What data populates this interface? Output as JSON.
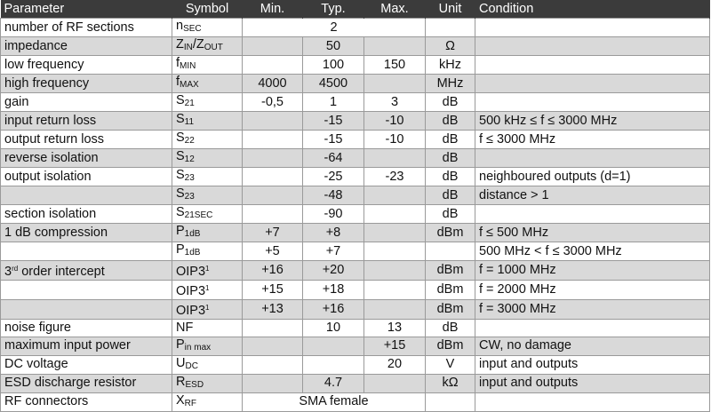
{
  "header": [
    "Parameter",
    "Symbol",
    "Min.",
    "Typ.",
    "Max.",
    "Unit",
    "Condition"
  ],
  "colors": {
    "header_bg": "#3b3b3b",
    "stripe": "#d9d9d9"
  },
  "rows": [
    {
      "param": [
        [
          "number of RF sections",
          ""
        ]
      ],
      "symbol": [
        [
          "n",
          ""
        ],
        [
          "SEC",
          "sub"
        ]
      ],
      "merged": "2",
      "unit": "",
      "cond": ""
    },
    {
      "param": [
        [
          "impedance",
          ""
        ]
      ],
      "symbol": [
        [
          "Z",
          ""
        ],
        [
          "IN",
          "sub"
        ],
        [
          "/Z",
          ""
        ],
        [
          "OUT",
          "sub"
        ]
      ],
      "min": "",
      "typ": "50",
      "max": "",
      "unit": "Ω",
      "cond": ""
    },
    {
      "param": [
        [
          "low frequency",
          ""
        ]
      ],
      "symbol": [
        [
          "f",
          ""
        ],
        [
          "MIN",
          "sub"
        ]
      ],
      "min": "",
      "typ": "100",
      "max": "150",
      "unit": "kHz",
      "cond": ""
    },
    {
      "param": [
        [
          "high frequency",
          ""
        ]
      ],
      "symbol": [
        [
          "f",
          ""
        ],
        [
          "MAX",
          "sub"
        ]
      ],
      "min": "4000",
      "typ": "4500",
      "max": "",
      "unit": "MHz",
      "cond": ""
    },
    {
      "param": [
        [
          "gain",
          ""
        ]
      ],
      "symbol": [
        [
          "S",
          ""
        ],
        [
          "21",
          "sub"
        ]
      ],
      "min": "-0,5",
      "typ": "1",
      "max": "3",
      "unit": "dB",
      "cond": ""
    },
    {
      "param": [
        [
          "input return loss",
          ""
        ]
      ],
      "symbol": [
        [
          "S",
          ""
        ],
        [
          "11",
          "sub"
        ]
      ],
      "min": "",
      "typ": "-15",
      "max": "-10",
      "unit": "dB",
      "cond": "500 kHz ≤ f ≤ 3000 MHz"
    },
    {
      "param": [
        [
          "output return loss",
          ""
        ]
      ],
      "symbol": [
        [
          "S",
          ""
        ],
        [
          "22",
          "sub"
        ]
      ],
      "min": "",
      "typ": "-15",
      "max": "-10",
      "unit": "dB",
      "cond": "f ≤ 3000 MHz"
    },
    {
      "param": [
        [
          "reverse isolation",
          ""
        ]
      ],
      "symbol": [
        [
          "S",
          ""
        ],
        [
          "12",
          "sub"
        ]
      ],
      "min": "",
      "typ": "-64",
      "max": "",
      "unit": "dB",
      "cond": ""
    },
    {
      "param": [
        [
          "output isolation",
          ""
        ]
      ],
      "symbol": [
        [
          "S",
          ""
        ],
        [
          "23",
          "sub"
        ]
      ],
      "min": "",
      "typ": "-25",
      "max": "-23",
      "unit": "dB",
      "cond": "neighboured outputs (d=1)"
    },
    {
      "param": [],
      "symbol": [
        [
          "S",
          ""
        ],
        [
          "23",
          "sub"
        ]
      ],
      "min": "",
      "typ": "-48",
      "max": "",
      "unit": "dB",
      "cond": "distance > 1"
    },
    {
      "param": [
        [
          "section isolation",
          ""
        ]
      ],
      "symbol": [
        [
          "S",
          ""
        ],
        [
          "21SEC",
          "sub"
        ]
      ],
      "min": "",
      "typ": "-90",
      "max": "",
      "unit": "dB",
      "cond": ""
    },
    {
      "param": [
        [
          "1 dB compression",
          ""
        ]
      ],
      "symbol": [
        [
          "P",
          ""
        ],
        [
          "1dB",
          "sub"
        ]
      ],
      "min": "+7",
      "typ": "+8",
      "max": "",
      "unit": "dBm",
      "cond": "f ≤ 500 MHz"
    },
    {
      "param": [],
      "symbol": [
        [
          "P",
          ""
        ],
        [
          "1dB",
          "sub"
        ]
      ],
      "min": "+5",
      "typ": "+7",
      "max": "",
      "unit": "",
      "cond": "500 MHz < f ≤ 3000 MHz"
    },
    {
      "param": [
        [
          "3",
          ""
        ],
        [
          "rd",
          "sup"
        ],
        [
          " order intercept",
          ""
        ]
      ],
      "symbol": [
        [
          "OIP3",
          ""
        ],
        [
          "1",
          "sup"
        ]
      ],
      "min": "+16",
      "typ": "+20",
      "max": "",
      "unit": "dBm",
      "cond": "f = 1000 MHz"
    },
    {
      "param": [],
      "symbol": [
        [
          "OIP3",
          ""
        ],
        [
          "1",
          "sup"
        ]
      ],
      "min": "+15",
      "typ": "+18",
      "max": "",
      "unit": "dBm",
      "cond": "f = 2000 MHz"
    },
    {
      "param": [],
      "symbol": [
        [
          "OIP3",
          ""
        ],
        [
          "1",
          "sup"
        ]
      ],
      "min": "+13",
      "typ": "+16",
      "max": "",
      "unit": "dBm",
      "cond": "f = 3000 MHz"
    },
    {
      "param": [
        [
          "noise figure",
          ""
        ]
      ],
      "symbol": [
        [
          "NF",
          ""
        ]
      ],
      "min": "",
      "typ": "10",
      "max": "13",
      "unit": "dB",
      "cond": ""
    },
    {
      "param": [
        [
          "maximum input power",
          ""
        ]
      ],
      "symbol": [
        [
          "P",
          ""
        ],
        [
          "in max",
          "sub"
        ]
      ],
      "min": "",
      "typ": "",
      "max": "+15",
      "unit": "dBm",
      "cond": "CW, no damage"
    },
    {
      "param": [
        [
          "DC voltage",
          ""
        ]
      ],
      "symbol": [
        [
          "U",
          ""
        ],
        [
          "DC",
          "sub"
        ]
      ],
      "min": "",
      "typ": "",
      "max": "20",
      "unit": "V",
      "cond": "input and outputs"
    },
    {
      "param": [
        [
          "ESD discharge resistor",
          ""
        ]
      ],
      "symbol": [
        [
          "R",
          ""
        ],
        [
          "ESD",
          "sub"
        ]
      ],
      "min": "",
      "typ": "4.7",
      "max": "",
      "unit": "kΩ",
      "cond": "input and outputs"
    },
    {
      "param": [
        [
          "RF connectors",
          ""
        ]
      ],
      "symbol": [
        [
          "X",
          ""
        ],
        [
          "RF",
          "sub"
        ]
      ],
      "merged": "SMA female",
      "unit": "",
      "cond": ""
    }
  ]
}
